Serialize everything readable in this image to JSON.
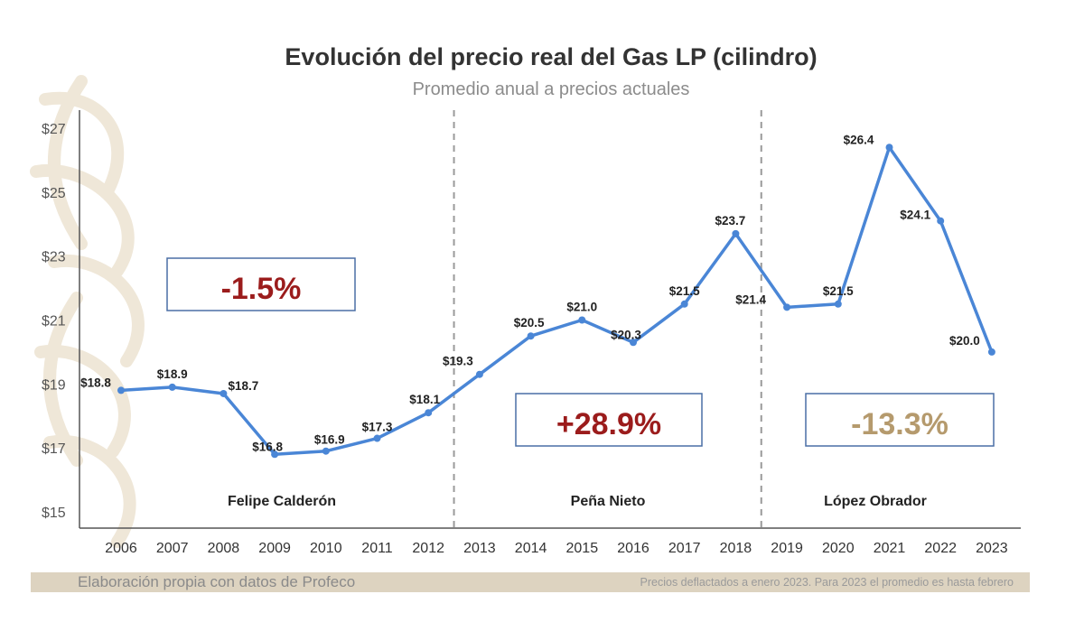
{
  "chart_data": {
    "type": "line",
    "title": "Evolución del precio real del Gas LP (cilindro)",
    "subtitle": "Promedio anual a precios actuales",
    "xlabel": "",
    "ylabel": "",
    "categories": [
      "2006",
      "2007",
      "2008",
      "2009",
      "2010",
      "2011",
      "2012",
      "2013",
      "2014",
      "2015",
      "2016",
      "2017",
      "2018",
      "2019",
      "2020",
      "2021",
      "2022",
      "2023"
    ],
    "series": [
      {
        "values": [
          18.8,
          18.9,
          18.7,
          16.8,
          16.9,
          17.3,
          18.1,
          19.3,
          20.5,
          21.0,
          20.3,
          21.5,
          23.7,
          21.4,
          21.5,
          26.4,
          24.1,
          20.0
        ],
        "labels": [
          "$18.8",
          "$18.9",
          "$18.7",
          "$16.8",
          "$16.9",
          "$17.3",
          "$18.1",
          "$19.3",
          "$20.5",
          "$21.0",
          "$20.3",
          "$21.5",
          "$23.7",
          "$21.4",
          "$21.5",
          "$26.4",
          "$24.1",
          "$20.0"
        ],
        "color": "#4a86d6"
      }
    ],
    "ylim": [
      15,
      27
    ],
    "yticks": [
      15,
      17,
      19,
      21,
      23,
      25,
      27
    ],
    "ytick_labels": [
      "$15",
      "$17",
      "$19",
      "$21",
      "$23",
      "$25",
      "$27"
    ],
    "grid": false,
    "periods": [
      {
        "name": "Felipe Calderón",
        "change": "-1.5%",
        "change_color": "#9b1c1c"
      },
      {
        "name": "Peña Nieto",
        "change": "+28.9%",
        "change_color": "#9b1c1c"
      },
      {
        "name": "López Obrador",
        "change": "-13.3%",
        "change_color": "#b59a6d"
      }
    ],
    "period_dividers_after": [
      "2012",
      "2018"
    ]
  },
  "footer": {
    "source": "Elaboración propia con datos de Profeco",
    "note": "Precios deflactados a enero 2023. Para 2023 el promedio es hasta febrero"
  },
  "colors": {
    "line": "#4a86d6",
    "box_border": "#4a6fa5",
    "footer_bar": "#ddd3c0",
    "watermark": "#efe7d8"
  }
}
